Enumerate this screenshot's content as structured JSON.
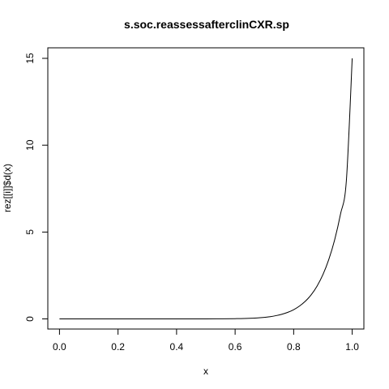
{
  "chart_data": {
    "type": "line",
    "title": "s.soc.reassessafterclinCXR.sp",
    "xlabel": "x",
    "ylabel": "rez[[i]]$d(x)",
    "xlim": [
      0,
      1
    ],
    "ylim": [
      0,
      15
    ],
    "grid": false,
    "x_ticks": [
      0,
      0.2,
      0.4,
      0.6,
      0.8,
      1
    ],
    "x_tick_labels": [
      "0.0",
      "0.2",
      "0.4",
      "0.6",
      "0.8",
      "1.0"
    ],
    "y_ticks": [
      0,
      5,
      10,
      15
    ],
    "y_tick_labels": [
      "0",
      "5",
      "10",
      "15"
    ],
    "series": [
      {
        "name": "rez[[i]]$d(x)",
        "color": "#000000",
        "x": [
          0,
          0.1,
          0.2,
          0.3,
          0.4,
          0.5,
          0.55,
          0.6,
          0.65,
          0.7,
          0.72,
          0.74,
          0.76,
          0.78,
          0.8,
          0.82,
          0.84,
          0.86,
          0.88,
          0.9,
          0.92,
          0.94,
          0.96,
          0.98,
          1.0
        ],
        "y": [
          0,
          0,
          0,
          0,
          0,
          0.002,
          0.005,
          0.013,
          0.035,
          0.09,
          0.13,
          0.19,
          0.27,
          0.38,
          0.53,
          0.74,
          1.02,
          1.39,
          1.89,
          2.55,
          3.42,
          4.55,
          6.03,
          7.95,
          15.0
        ]
      }
    ]
  }
}
